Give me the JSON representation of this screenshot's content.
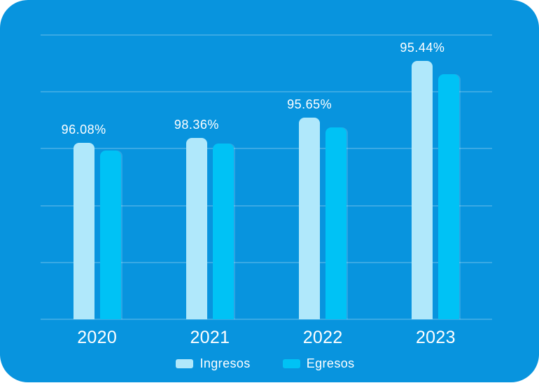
{
  "card": {
    "background_color": "#0894DE"
  },
  "chart_data": {
    "type": "bar",
    "categories": [
      "2020",
      "2021",
      "2022",
      "2023"
    ],
    "series": [
      {
        "name": "Ingresos",
        "color": "#B0E8FB",
        "values": [
          62.1,
          63.8,
          70.9,
          90.9
        ]
      },
      {
        "name": "Egresos",
        "color": "#00C2F5",
        "values": [
          59.4,
          61.8,
          67.5,
          86.2
        ]
      }
    ],
    "value_unit": "relative bar height, percent of plot height (no y-axis tick labels shown)",
    "bar_labels": [
      "96.08%",
      "98.36%",
      "95.65%",
      "95.44%"
    ],
    "bar_labels_attached_to_series": "Ingresos",
    "title": "",
    "xlabel": "",
    "ylabel": "",
    "grid": true,
    "gridline_count": 6,
    "gridline_color": "rgba(255,255,255,0.20)",
    "legend_position": "bottom-center",
    "text_color": "#FFFFFF"
  },
  "legend": {
    "items": [
      {
        "label": "Ingresos",
        "color": "#B0E8FB"
      },
      {
        "label": "Egresos",
        "color": "#00C2F5"
      }
    ]
  }
}
